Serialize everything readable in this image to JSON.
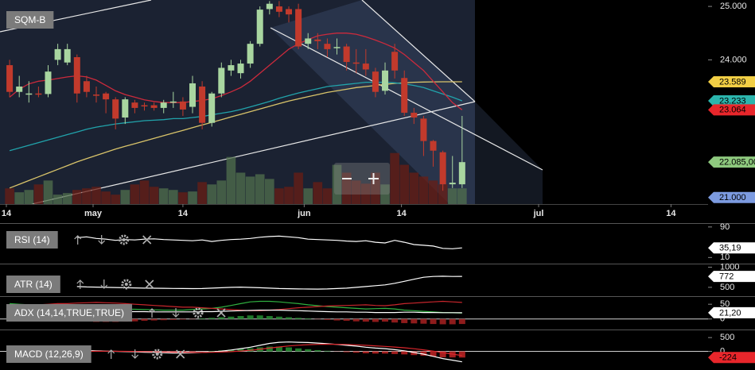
{
  "chart_data": [
    {
      "type": "candlestick",
      "title": "SQM-B",
      "x": [
        0,
        1,
        2,
        3,
        4,
        5,
        6,
        7,
        8,
        9,
        10,
        11,
        12,
        13,
        14,
        15,
        16,
        17,
        18,
        19,
        20,
        21,
        22,
        23,
        24,
        25,
        26,
        27,
        28,
        29,
        30,
        31,
        32,
        33,
        34,
        35,
        36,
        37,
        38,
        39,
        40,
        41,
        42,
        43,
        44,
        45,
        46,
        47
      ],
      "open": [
        23.9,
        23.4,
        23.37,
        23.37,
        23.36,
        24.0,
        23.95,
        24.05,
        23.6,
        23.35,
        23.37,
        23.26,
        22.92,
        23.2,
        23.15,
        23.15,
        23.1,
        23.2,
        23.22,
        23.12,
        23.5,
        22.82,
        23.37,
        23.8,
        23.75,
        23.93,
        24.3,
        24.95,
        25.0,
        24.95,
        24.95,
        24.3,
        24.38,
        24.3,
        24.22,
        24.25,
        23.95,
        23.93,
        23.78,
        23.42,
        24.15,
        23.66,
        23.01,
        22.9,
        22.48,
        22.27,
        21.67,
        21.67
      ],
      "high": [
        24.0,
        23.7,
        23.6,
        23.5,
        23.9,
        24.3,
        24.3,
        24.1,
        23.7,
        23.5,
        23.4,
        23.3,
        23.3,
        23.25,
        23.2,
        23.2,
        23.25,
        23.4,
        23.3,
        23.7,
        23.6,
        23.4,
        23.95,
        24.0,
        24.0,
        24.35,
        25.0,
        25.1,
        25.1,
        25.0,
        25.05,
        24.5,
        24.5,
        24.4,
        24.4,
        24.3,
        24.2,
        24.2,
        23.85,
        23.95,
        24.3,
        23.8,
        23.1,
        22.95,
        22.5,
        22.3,
        22.2,
        22.95
      ],
      "low": [
        23.3,
        23.3,
        23.2,
        23.3,
        23.3,
        23.9,
        23.9,
        23.2,
        23.3,
        23.2,
        23.0,
        22.7,
        22.8,
        23.0,
        23.05,
        23.05,
        23.0,
        23.1,
        22.95,
        23.0,
        22.7,
        22.75,
        23.3,
        23.7,
        23.65,
        23.85,
        24.25,
        24.85,
        24.8,
        24.7,
        24.2,
        24.2,
        24.2,
        24.05,
        24.1,
        23.8,
        23.75,
        23.7,
        23.3,
        23.35,
        23.65,
        22.95,
        22.8,
        22.2,
        22.0,
        21.55,
        21.6,
        21.6
      ],
      "close": [
        23.4,
        23.5,
        23.37,
        23.35,
        23.78,
        24.2,
        24.2,
        23.37,
        23.4,
        23.33,
        23.26,
        22.9,
        23.26,
        23.1,
        23.13,
        23.1,
        23.2,
        23.22,
        23.07,
        23.56,
        22.82,
        23.37,
        23.85,
        23.9,
        23.93,
        24.3,
        24.94,
        25.05,
        24.9,
        24.85,
        24.25,
        24.4,
        24.35,
        24.2,
        24.24,
        23.96,
        23.93,
        23.82,
        23.4,
        23.8,
        23.8,
        23.01,
        22.92,
        22.48,
        22.3,
        21.67,
        21.7,
        22.085
      ],
      "up_color": "#a9d6a0",
      "down_color": "#c23a2c",
      "xlim": [
        -1,
        72.55
      ],
      "xticks": [
        {
          "value": -0.34,
          "label": "14"
        },
        {
          "value": 8.67,
          "label": "may"
        },
        {
          "value": 18.0,
          "label": "14"
        },
        {
          "value": 30.6,
          "label": "jun"
        },
        {
          "value": 40.7,
          "label": "14"
        },
        {
          "value": 54.95,
          "label": "jul"
        },
        {
          "value": 68.7,
          "label": "14"
        }
      ],
      "ylim": [
        21.3,
        25.12
      ],
      "yticks": [
        {
          "value": 25,
          "label": "25.000"
        },
        {
          "value": 24,
          "label": "24.000"
        }
      ],
      "overlays": [
        {
          "color": "#d9c46a",
          "values": [
            21.6,
            21.67,
            21.74,
            21.81,
            21.88,
            21.95,
            22.02,
            22.09,
            22.15,
            22.21,
            22.27,
            22.33,
            22.38,
            22.43,
            22.48,
            22.53,
            22.58,
            22.63,
            22.68,
            22.73,
            22.78,
            22.83,
            22.88,
            22.93,
            22.98,
            23.03,
            23.08,
            23.13,
            23.18,
            23.23,
            23.27,
            23.31,
            23.35,
            23.39,
            23.42,
            23.45,
            23.48,
            23.5,
            23.52,
            23.54,
            23.56,
            23.57,
            23.58,
            23.585,
            23.588,
            23.589,
            23.589,
            23.589
          ]
        },
        {
          "color": "#21a3ab",
          "values": [
            22.3,
            22.35,
            22.4,
            22.45,
            22.5,
            22.55,
            22.6,
            22.65,
            22.7,
            22.74,
            22.77,
            22.8,
            22.82,
            22.84,
            22.86,
            22.87,
            22.88,
            22.9,
            22.9,
            22.92,
            22.94,
            22.97,
            23.0,
            23.03,
            23.07,
            23.12,
            23.17,
            23.22,
            23.28,
            23.33,
            23.38,
            23.42,
            23.46,
            23.5,
            23.52,
            23.54,
            23.56,
            23.58,
            23.58,
            23.58,
            23.57,
            23.55,
            23.52,
            23.48,
            23.42,
            23.36,
            23.3,
            23.233
          ]
        },
        {
          "color": "#cc2a3c",
          "values": [
            23.3,
            23.45,
            23.55,
            23.6,
            23.62,
            23.65,
            23.68,
            23.7,
            23.68,
            23.62,
            23.52,
            23.42,
            23.35,
            23.3,
            23.25,
            23.22,
            23.2,
            23.2,
            23.2,
            23.22,
            23.24,
            23.27,
            23.33,
            23.4,
            23.48,
            23.6,
            23.75,
            23.9,
            24.05,
            24.2,
            24.3,
            24.38,
            24.45,
            24.48,
            24.5,
            24.5,
            24.48,
            24.43,
            24.37,
            24.3,
            24.22,
            24.1,
            23.95,
            23.8,
            23.6,
            23.4,
            23.2,
            23.064
          ]
        }
      ],
      "badges": [
        {
          "value": 23.589,
          "label": "23.589",
          "color": "#f2cf45"
        },
        {
          "value": 23.233,
          "label": "23.233",
          "color": "#2bb5ad"
        },
        {
          "value": 23.064,
          "label": "23.064",
          "color": "#e8262b"
        },
        {
          "value": 22.085,
          "label": "22.085,00",
          "color": "#8ec97e"
        }
      ],
      "volume": {
        "up_color": "#51704d",
        "down_color": "#6a1e14",
        "values": [
          50000,
          37500,
          45000,
          62500,
          75000,
          30000,
          35000,
          45000,
          50000,
          55000,
          40000,
          30000,
          45000,
          62500,
          75000,
          55000,
          50000,
          45000,
          37500,
          40000,
          70000,
          62500,
          75000,
          150000,
          100000,
          87500,
          95000,
          80000,
          50000,
          55000,
          100000,
          50000,
          70000,
          50000,
          125000,
          100000,
          75000,
          65000,
          100000,
          62500,
          162500,
          125000,
          100000,
          87500,
          75000,
          62500,
          50000,
          50000
        ],
        "y2lim": [
          0,
          650000
        ],
        "badge": {
          "value": 21000,
          "label": "21.000",
          "color": "#7c9be0"
        }
      }
    },
    {
      "type": "line",
      "title": "RSI (14)",
      "ylim": [
        -6,
        98
      ],
      "yticks": [
        90,
        10
      ],
      "zero_line": false,
      "series": [
        {
          "color": "#ffffff",
          "values": [
            null,
            null,
            null,
            null,
            null,
            null,
            null,
            62,
            64,
            60,
            58,
            55,
            57,
            56,
            58,
            59,
            57,
            56,
            55,
            54,
            56,
            52,
            55,
            57,
            58,
            60,
            63,
            65,
            66,
            64,
            62,
            58,
            57,
            56,
            55,
            53,
            52,
            54,
            50,
            48,
            55,
            50,
            44,
            42,
            40,
            34,
            33,
            35.19
          ]
        }
      ],
      "last_value": {
        "value": 35.19,
        "label": "35,19",
        "color": "#ffffff"
      }
    },
    {
      "type": "line",
      "title": "ATR (14)",
      "ylim": [
        300,
        1050
      ],
      "yticks": [
        1000,
        500
      ],
      "zero_line": false,
      "series": [
        {
          "color": "#ffffff",
          "values": [
            null,
            null,
            null,
            null,
            null,
            null,
            null,
            520,
            510,
            505,
            500,
            495,
            490,
            485,
            480,
            478,
            475,
            472,
            470,
            468,
            470,
            480,
            490,
            500,
            505,
            498,
            490,
            480,
            470,
            465,
            460,
            458,
            455,
            460,
            470,
            480,
            500,
            520,
            540,
            560,
            600,
            650,
            700,
            750,
            770,
            775,
            770,
            772
          ]
        }
      ],
      "last_value": {
        "value": 772,
        "color": "#ffffff"
      }
    },
    {
      "type": "line",
      "title": "ADX (14,14,TRUE,TRUE)",
      "ylim": [
        -33,
        72
      ],
      "yticks": [
        50,
        0
      ],
      "zero_line": true,
      "histogram": {
        "up_color": "#1f7a2a",
        "down_color": "#8e1c1c",
        "values": [
          10,
          8,
          6,
          4,
          2,
          -2,
          -4,
          -6,
          -8,
          -10,
          -10,
          -10,
          -9,
          -8,
          -6,
          -5,
          -4,
          -3,
          -2,
          -1,
          2,
          4,
          6,
          8,
          10,
          12,
          12,
          10,
          8,
          6,
          4,
          2,
          -1,
          -3,
          -5,
          -6,
          -8,
          -9,
          -10,
          -9,
          -12,
          -14,
          -15,
          -16,
          -17,
          -18,
          -18,
          -17
        ]
      },
      "series": [
        {
          "color": "#30b040",
          "values": [
            52,
            50,
            48,
            46,
            44,
            42,
            40,
            40,
            38,
            36,
            35,
            34,
            33,
            33,
            32,
            31,
            30,
            30,
            30,
            32,
            34,
            36,
            40,
            46,
            52,
            58,
            60,
            60,
            58,
            55,
            52,
            48,
            45,
            42,
            40,
            38,
            36,
            34,
            35,
            36,
            34,
            30,
            28,
            26,
            24,
            22,
            21,
            20
          ]
        },
        {
          "color": "#c8262c",
          "values": [
            42,
            44,
            46,
            48,
            50,
            52,
            52,
            54,
            55,
            56,
            55,
            54,
            52,
            50,
            48,
            46,
            44,
            42,
            40,
            40,
            38,
            36,
            34,
            32,
            30,
            28,
            28,
            30,
            32,
            35,
            38,
            40,
            42,
            44,
            45,
            46,
            47,
            48,
            46,
            45,
            48,
            52,
            54,
            56,
            58,
            60,
            58,
            56
          ]
        },
        {
          "color": "#ffffff",
          "values": [
            30,
            30,
            29,
            29,
            28,
            28,
            27,
            27,
            27,
            26,
            26,
            26,
            25,
            25,
            25,
            24,
            24,
            24,
            24,
            24,
            25,
            25,
            26,
            27,
            28,
            29,
            30,
            30,
            30,
            29,
            28,
            27,
            26,
            25,
            24,
            24,
            23,
            23,
            22,
            22,
            22,
            23,
            23,
            22,
            22,
            21.5,
            21.3,
            21.2
          ]
        }
      ],
      "last_value": {
        "value": 21.2,
        "label": "21,20",
        "color": "#ffffff"
      }
    },
    {
      "type": "line",
      "title": "MACD (12,26,9)",
      "ylim": [
        -676,
        735
      ],
      "yticks": [
        500,
        0
      ],
      "zero_line": true,
      "histogram": {
        "up_color": "#1f7a2a",
        "down_color": "#a51f1f",
        "values": [
          -20,
          -8,
          3,
          12,
          18,
          22,
          26,
          29,
          31,
          16,
          4,
          -5,
          -12,
          -18,
          -22,
          -26,
          -29,
          -31,
          -25,
          -16,
          -1,
          15,
          36,
          61,
          89,
          111,
          145,
          172,
          170,
          144,
          107,
          78,
          46,
          21,
          -7,
          -30,
          -48,
          -70,
          -80,
          -80,
          -96,
          -109,
          -135,
          -156,
          -189,
          -215,
          -220,
          -224
        ]
      },
      "series": [
        {
          "color": "#ffffff",
          "values": [
            -50,
            -40,
            -30,
            -20,
            -10,
            0,
            10,
            20,
            30,
            20,
            10,
            0,
            -10,
            -20,
            -30,
            -40,
            -50,
            -60,
            -60,
            -55,
            -40,
            -20,
            10,
            50,
            100,
            150,
            220,
            290,
            330,
            340,
            330,
            320,
            300,
            280,
            250,
            220,
            190,
            150,
            120,
            100,
            60,
            20,
            -40,
            -100,
            -180,
            -260,
            -320,
            -380
          ]
        },
        {
          "color": "#d8262c",
          "values": [
            -30,
            -32,
            -33,
            -32,
            -28,
            -22,
            -16,
            -9,
            -1,
            4,
            6,
            5,
            2,
            -2,
            -8,
            -14,
            -21,
            -29,
            -35,
            -39,
            -39,
            -35,
            -26,
            -11,
            11,
            39,
            75,
            118,
            160,
            196,
            223,
            242,
            254,
            259,
            257,
            250,
            238,
            220,
            200,
            180,
            156,
            129,
            95,
            56,
            9,
            -45,
            -100,
            -152
          ]
        }
      ],
      "last_value": {
        "value": -224,
        "color": "#e8262b"
      }
    }
  ]
}
